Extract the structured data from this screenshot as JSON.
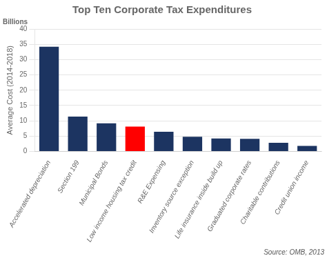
{
  "chart_data": {
    "type": "bar",
    "title": "Top Ten Corporate Tax Expenditures",
    "subtitle": "Billions",
    "ylabel": "Average Cost (2014-2018)",
    "annotations": [
      "Source: OMB, 2013"
    ],
    "categories": [
      "Accelerated depreciation",
      "Section 199",
      "Municipal Bonds",
      "Low income housing tax credit",
      "R&E Expensing",
      "Inventory source exception",
      "Life insurance inside build up",
      "Graduated corporate rates",
      "Charitable contributions",
      "Credit union income"
    ],
    "values": [
      34.2,
      11.4,
      9.2,
      8.1,
      6.4,
      4.8,
      4.2,
      4.1,
      2.8,
      1.8
    ],
    "colors": [
      "#1c3461",
      "#1c3461",
      "#1c3461",
      "#ff0000",
      "#1c3461",
      "#1c3461",
      "#1c3461",
      "#1c3461",
      "#1c3461",
      "#1c3461"
    ],
    "ylim": [
      0,
      40
    ],
    "yticks": [
      0,
      5,
      10,
      15,
      20,
      25,
      30,
      35,
      40
    ],
    "grid": true
  }
}
